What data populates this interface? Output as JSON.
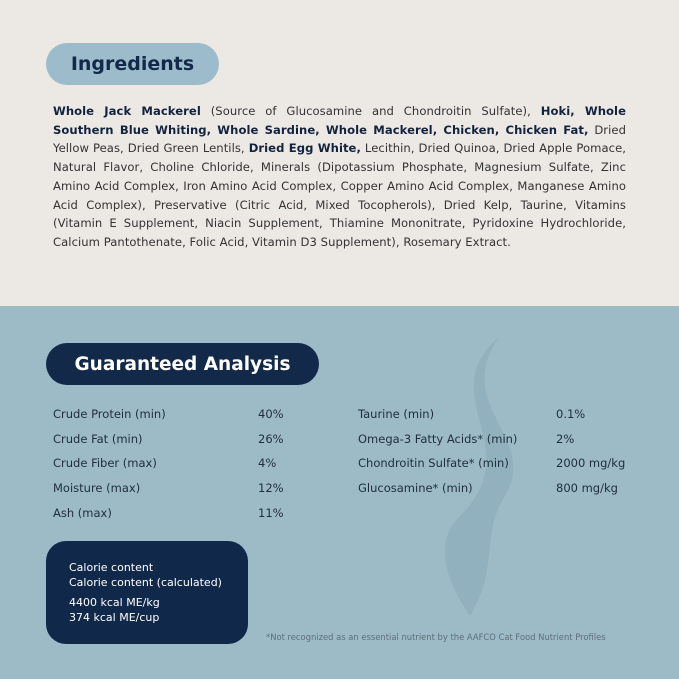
{
  "ingredients": {
    "title": "Ingredients",
    "segments": [
      {
        "text": "Whole Jack Mackerel",
        "bold": true
      },
      {
        "text": " (Source of Glucosamine and Chondroitin Sulfate), ",
        "bold": false
      },
      {
        "text": "Hoki, Whole Southern Blue Whiting, Whole Sardine, Whole Mackerel, Chicken, Chicken Fat,",
        "bold": true
      },
      {
        "text": " Dried Yellow Peas, Dried Green Lentils, ",
        "bold": false
      },
      {
        "text": "Dried Egg White,",
        "bold": true
      },
      {
        "text": " Lecithin, Dried Quinoa, Dried Apple Pomace, Natural Flavor, Choline Chloride, Minerals (Dipotassium Phosphate, Magnesium Sulfate, Zinc Amino Acid Complex, Iron Amino Acid Complex, Copper Amino Acid Complex, Manganese Amino Acid Complex), Preservative (Citric Acid, Mixed Tocopherols), Dried Kelp, Taurine, Vitamins (Vitamin E Supplement, Niacin Supplement, Thiamine Mononitrate, Pyridoxine Hydrochloride, Calcium Pantothenate, Folic Acid, Vitamin D3 Supplement), Rosemary Extract.",
        "bold": false
      }
    ]
  },
  "analysis": {
    "title": "Guaranteed Analysis",
    "left": [
      {
        "label": "Crude Protein (min)",
        "value": "40%"
      },
      {
        "label": "Crude Fat (min)",
        "value": "26%"
      },
      {
        "label": "Crude Fiber (max)",
        "value": "4%"
      },
      {
        "label": "Moisture (max)",
        "value": "12%"
      },
      {
        "label": "Ash (max)",
        "value": "11%"
      }
    ],
    "right": [
      {
        "label": "Taurine (min)",
        "value": "0.1%"
      },
      {
        "label": "Omega-3 Fatty Acids* (min)",
        "value": "2%"
      },
      {
        "label": "Chondroitin Sulfate* (min)",
        "value": "2000 mg/kg"
      },
      {
        "label": "Glucosamine* (min)",
        "value": "800 mg/kg"
      }
    ]
  },
  "calorie": {
    "line1": "Calorie content",
    "line2": "Calorie content (calculated)",
    "line3": "4400 kcal ME/kg",
    "line4": "374 kcal ME/cup"
  },
  "footnote": "*Not recognized as an essential nutrient by the AAFCO Cat Food Nutrient Profiles",
  "colors": {
    "top_bg": "#ece9e5",
    "bottom_bg": "#9dbbc7",
    "navy": "#10284a",
    "pill_blue": "#9cbccb"
  }
}
